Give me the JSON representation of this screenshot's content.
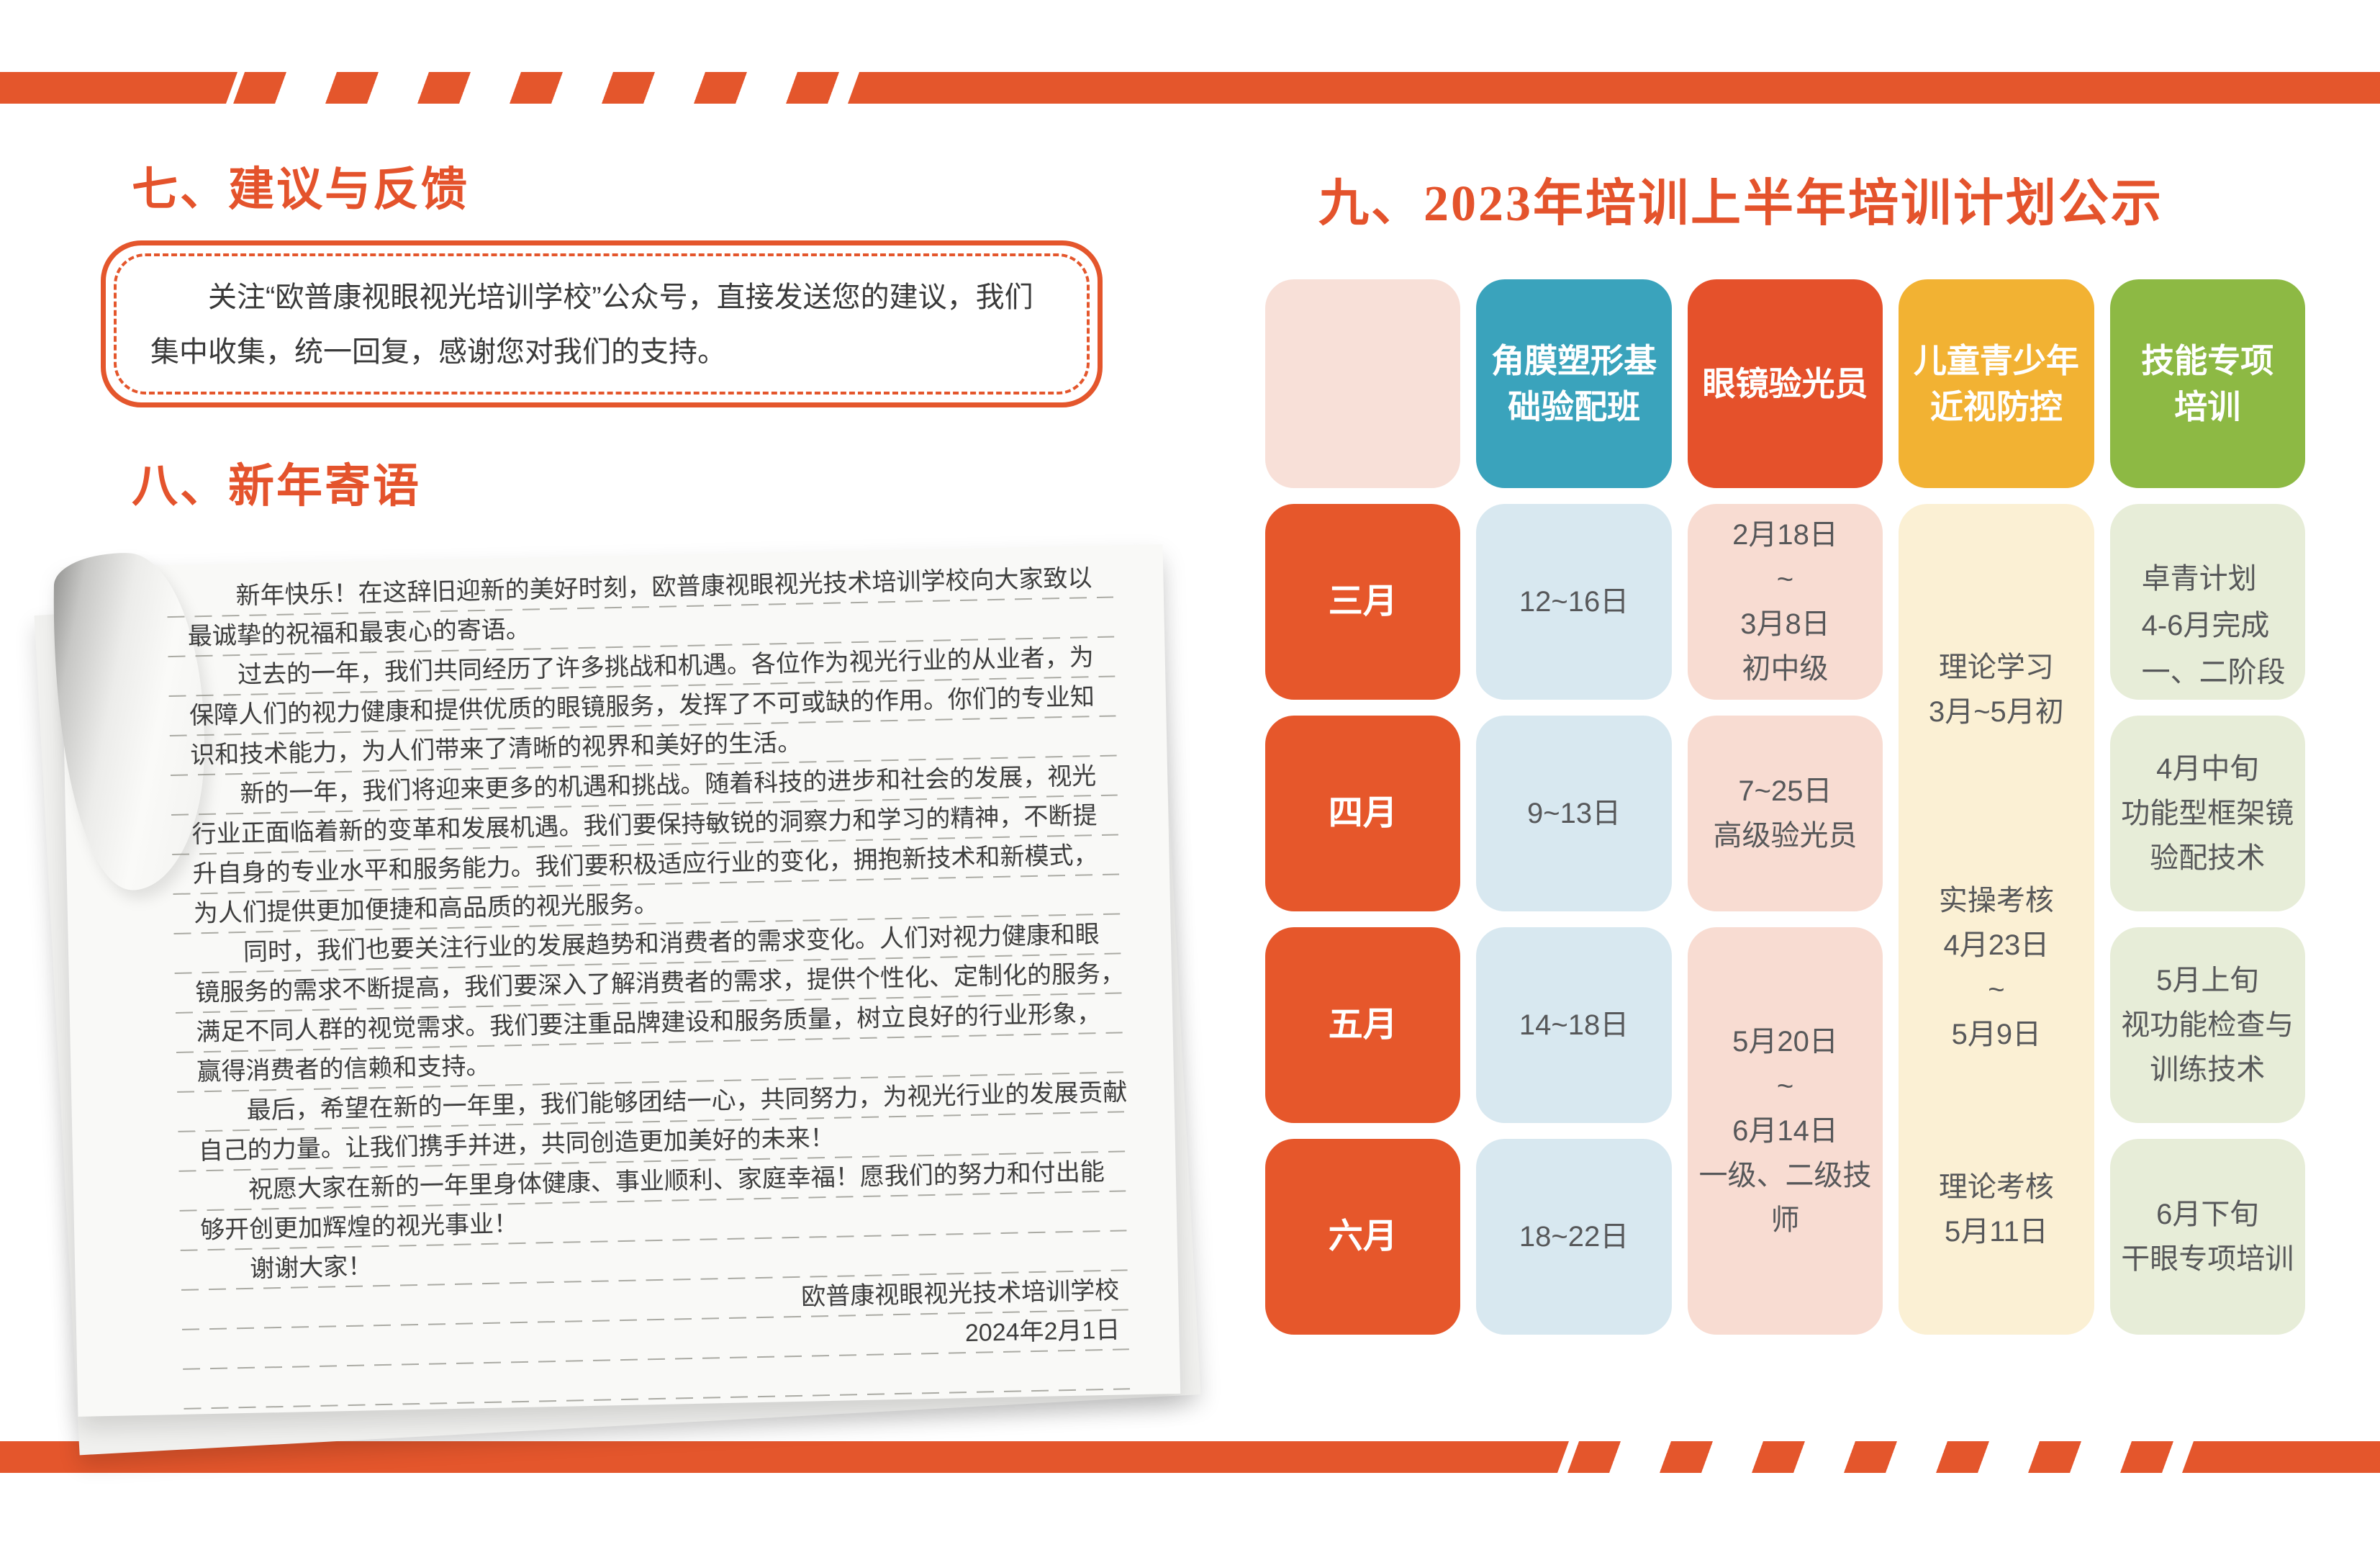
{
  "palette": {
    "accent_orange": "#E4562C",
    "title_orange": "#E4532C",
    "header_teal": "#3AA3BC",
    "header_red": "#E5512B",
    "header_yellow": "#F2B233",
    "header_green": "#8DB944",
    "cell_light_blue": "#D8E8F0",
    "cell_light_pink": "#F8DCD2",
    "cell_cream": "#FBF0D4",
    "cell_light_green": "#E7EDD8",
    "blank_cell_pink": "#F8E0D8",
    "body_text": "#57585A"
  },
  "feedback": {
    "title": "七、建议与反馈",
    "body": "关注“欧普康视眼视光培训学校”公众号，直接发送您的建议，我们集中收集，统一回复，感谢您对我们的支持。"
  },
  "newyear": {
    "title": "八、新年寄语",
    "lines": [
      {
        "text": "新年快乐！在这辞旧迎新的美好时刻，欧普康视眼视光技术培训学校向大家致以",
        "indent": true
      },
      {
        "text": "最诚挚的祝福和最衷心的寄语。"
      },
      {
        "text": "过去的一年，我们共同经历了许多挑战和机遇。各位作为视光行业的从业者，为",
        "indent": true
      },
      {
        "text": "保障人们的视力健康和提供优质的眼镜服务，发挥了不可或缺的作用。你们的专业知"
      },
      {
        "text": "识和技术能力，为人们带来了清晰的视界和美好的生活。"
      },
      {
        "text": "新的一年，我们将迎来更多的机遇和挑战。随着科技的进步和社会的发展，视光",
        "indent": true
      },
      {
        "text": "行业正面临着新的变革和发展机遇。我们要保持敏锐的洞察力和学习的精神，不断提"
      },
      {
        "text": "升自身的专业水平和服务能力。我们要积极适应行业的变化，拥抱新技术和新模式，"
      },
      {
        "text": "为人们提供更加便捷和高品质的视光服务。"
      },
      {
        "text": "同时，我们也要关注行业的发展趋势和消费者的需求变化。人们对视力健康和眼",
        "indent": true
      },
      {
        "text": "镜服务的需求不断提高，我们要深入了解消费者的需求，提供个性化、定制化的服务，"
      },
      {
        "text": "满足不同人群的视觉需求。我们要注重品牌建设和服务质量，树立良好的行业形象，"
      },
      {
        "text": "赢得消费者的信赖和支持。"
      },
      {
        "text": "最后，希望在新的一年里，我们能够团结一心，共同努力，为视光行业的发展贡献",
        "indent": true
      },
      {
        "text": "自己的力量。让我们携手并进，共同创造更加美好的未来！"
      },
      {
        "text": "祝愿大家在新的一年里身体健康、事业顺利、家庭幸福！愿我们的努力和付出能",
        "indent": true
      },
      {
        "text": "够开创更加辉煌的视光事业！"
      },
      {
        "text": "谢谢大家！",
        "indent": true
      },
      {
        "text": "欧普康视眼视光技术培训学校",
        "align": "right"
      },
      {
        "text": "2024年2月1日",
        "align": "right"
      },
      {
        "text": ""
      }
    ]
  },
  "plan": {
    "title": "九、2023年培训上半年培训计划公示",
    "columns": [
      {
        "label": ""
      },
      {
        "label": "角膜塑形基\n础验配班"
      },
      {
        "label": "眼镜验光员"
      },
      {
        "label": "儿童青少年\n近视防控"
      },
      {
        "label": "技能专项\n培训"
      }
    ],
    "months": [
      "三月",
      "四月",
      "五月",
      "六月"
    ],
    "basic_fitting_class": [
      "12~16日",
      "9~13日",
      "14~18日",
      "18~22日"
    ],
    "optometrist": {
      "march": "2月18日\n~\n3月8日\n初中级",
      "april": "7~25日\n高级验光员",
      "may_june": "5月20日\n~\n6月14日\n一级、二级技师"
    },
    "myopia_control": {
      "g1": "理论学习\n3月~5月初",
      "g2": "实操考核\n4月23日\n~\n5月9日",
      "g3": "理论考核\n5月11日"
    },
    "special_training": [
      "卓青计划\n4-6月完成\n一、二阶段",
      "4月中旬\n功能型框架镜\n验配技术",
      "5月上旬\n视功能检查与\n训练技术",
      "6月下旬\n干眼专项培训"
    ]
  }
}
